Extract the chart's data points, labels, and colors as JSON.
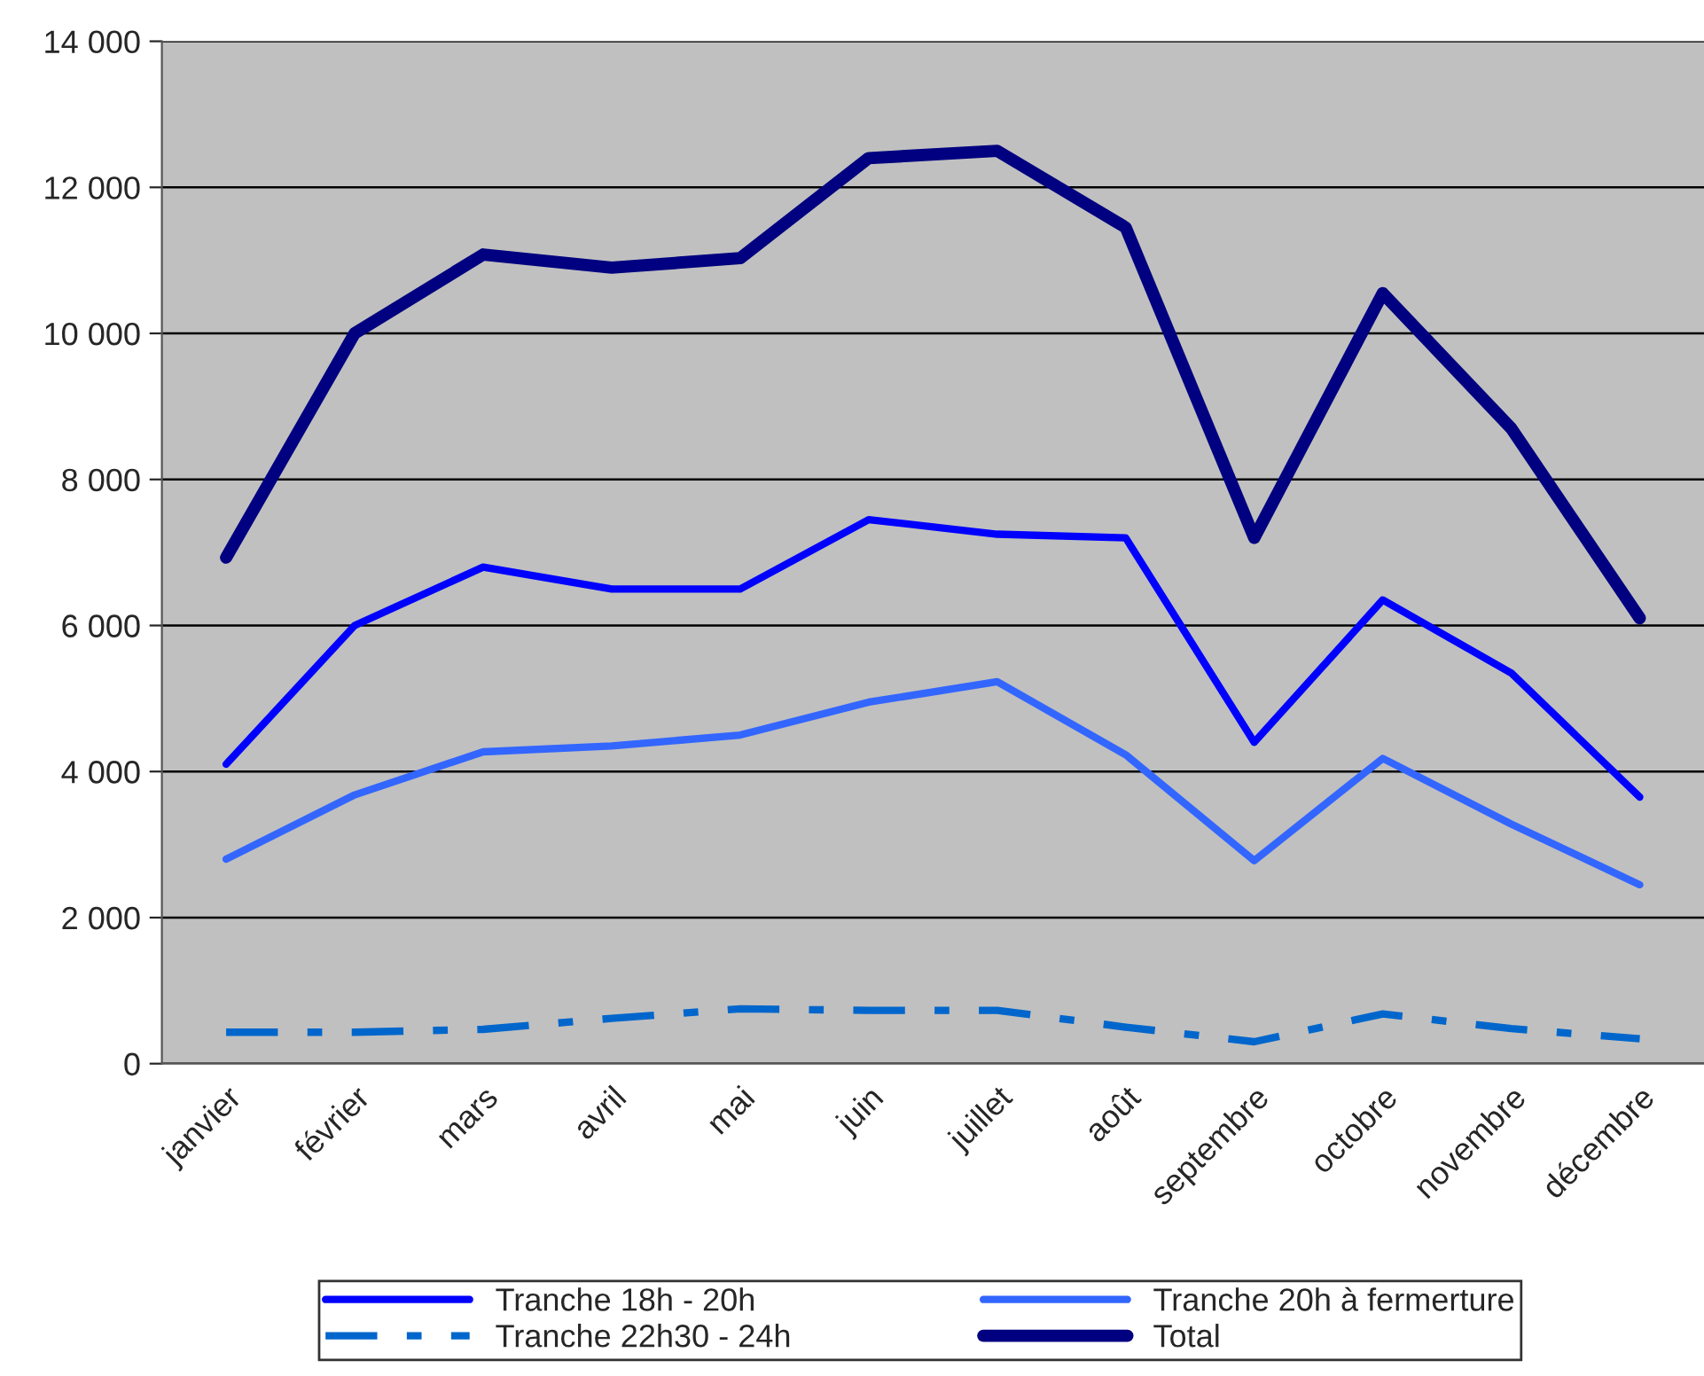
{
  "chart_data": {
    "type": "line",
    "categories": [
      "janvier",
      "février",
      "mars",
      "avril",
      "mai",
      "juin",
      "juillet",
      "août",
      "septembre",
      "octobre",
      "novembre",
      "décembre"
    ],
    "series": [
      {
        "name": "Tranche 18h - 20h",
        "color": "#0000ff",
        "line_style": "solid",
        "values": [
          4100,
          6000,
          6800,
          6500,
          6500,
          7450,
          7250,
          7200,
          4400,
          6350,
          5350,
          3650
        ]
      },
      {
        "name": "Tranche 20h à fermerture",
        "color": "#3366ff",
        "line_style": "solid",
        "values": [
          2800,
          3680,
          4270,
          4350,
          4500,
          4950,
          5230,
          4230,
          2780,
          4180,
          3280,
          2450
        ]
      },
      {
        "name": "Tranche 22h30 - 24h",
        "color": "#0066cc",
        "line_style": "dashed",
        "values": [
          430,
          430,
          470,
          620,
          750,
          730,
          730,
          500,
          300,
          680,
          480,
          340
        ]
      },
      {
        "name": "Total",
        "color": "#000080",
        "line_style": "solid",
        "values": [
          6930,
          10000,
          11080,
          10900,
          11030,
          12400,
          12500,
          11450,
          7200,
          10550,
          8700,
          6100
        ]
      }
    ],
    "ylim": [
      0,
      14000
    ],
    "yticks": [
      {
        "value": 0,
        "label": "0"
      },
      {
        "value": 2000,
        "label": "2 000"
      },
      {
        "value": 4000,
        "label": "4 000"
      },
      {
        "value": 6000,
        "label": "6 000"
      },
      {
        "value": 8000,
        "label": "8 000"
      },
      {
        "value": 10000,
        "label": "10 000"
      },
      {
        "value": 12000,
        "label": "12 000"
      },
      {
        "value": 14000,
        "label": "14 000"
      }
    ],
    "grid": "y",
    "legend": "bottom",
    "marker": "none"
  }
}
